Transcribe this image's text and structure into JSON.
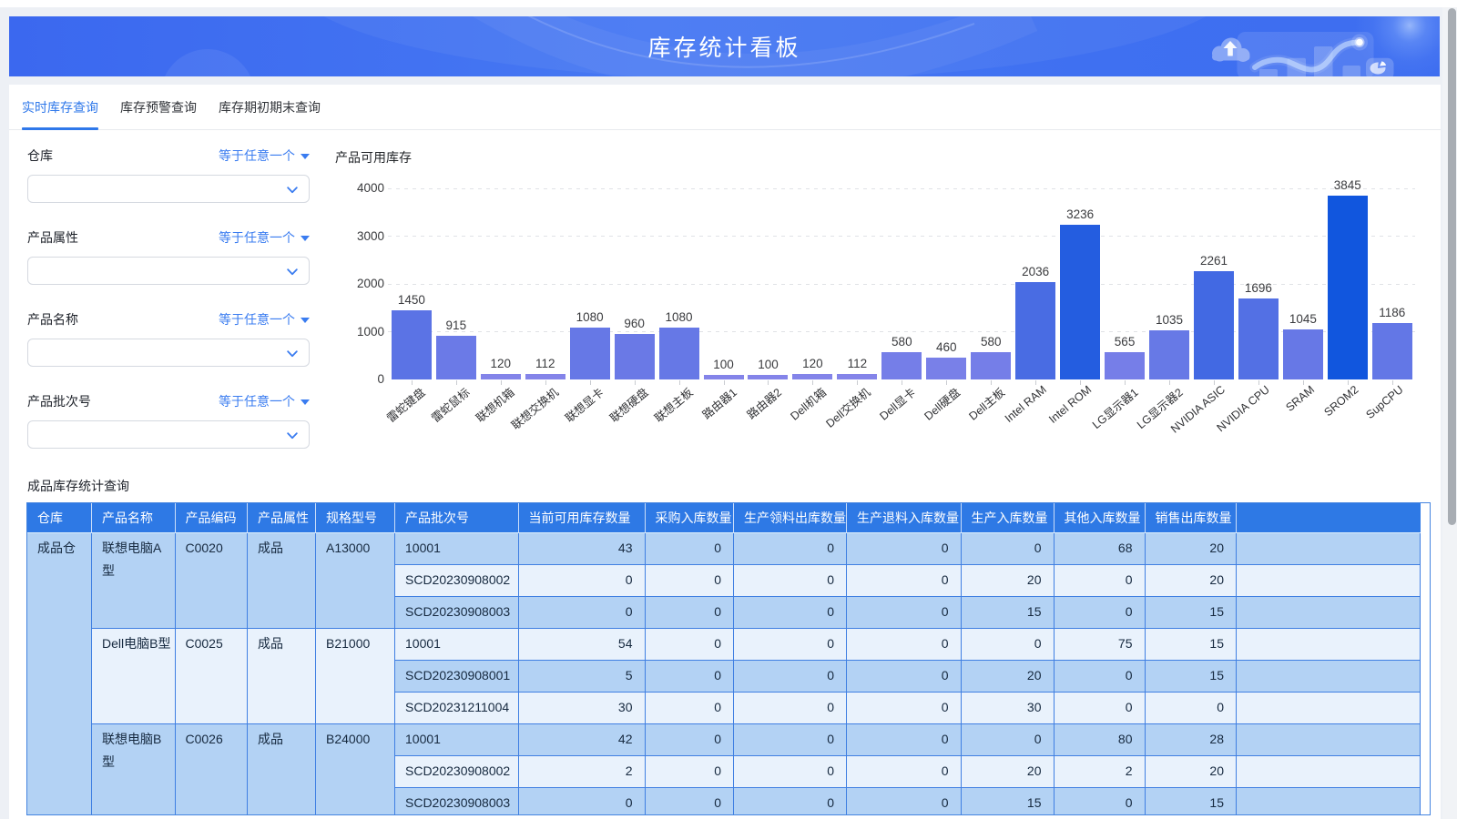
{
  "banner": {
    "title": "库存统计看板"
  },
  "tabs": [
    {
      "label": "实时库存查询",
      "active": true
    },
    {
      "label": "库存预警查询",
      "active": false
    },
    {
      "label": "库存期初期末查询",
      "active": false
    }
  ],
  "filters": {
    "operator_label": "等于任意一个",
    "groups": [
      {
        "label": "仓库",
        "value": ""
      },
      {
        "label": "产品属性",
        "value": ""
      },
      {
        "label": "产品名称",
        "value": ""
      },
      {
        "label": "产品批次号",
        "value": ""
      }
    ]
  },
  "chart_data": {
    "type": "bar",
    "title": "产品可用库存",
    "categories": [
      "雷蛇键盘",
      "雷蛇鼠标",
      "联想机箱",
      "联想交换机",
      "联想显卡",
      "联想硬盘",
      "联想主板",
      "路由器1",
      "路由器2",
      "Dell机箱",
      "Dell交换机",
      "Dell显卡",
      "Dell硬盘",
      "Dell主板",
      "Intel RAM",
      "Intel ROM",
      "LG显示器1",
      "LG显示器2",
      "NVIDIA ASIC",
      "NVIDIA CPU",
      "SRAM",
      "SROM2",
      "SupCPU"
    ],
    "values": [
      1450,
      915,
      120,
      112,
      1080,
      960,
      1080,
      100,
      100,
      120,
      112,
      580,
      460,
      580,
      2036,
      3236,
      565,
      1035,
      2261,
      1696,
      1045,
      3845,
      1186
    ],
    "xlabel": "",
    "ylabel": "",
    "ylim": [
      0,
      4000
    ],
    "yticks": [
      0,
      1000,
      2000,
      3000,
      4000
    ],
    "grid": "dashed-horizontal",
    "legend": "none",
    "bar_color_low": "#8484e9",
    "bar_color_high": "#1156de"
  },
  "table": {
    "caption": "成品库存统计查询",
    "columns": [
      {
        "label": "仓库"
      },
      {
        "label": "产品名称"
      },
      {
        "label": "产品编码"
      },
      {
        "label": "产品属性"
      },
      {
        "label": "规格型号"
      },
      {
        "label": "产品批次号"
      },
      {
        "label": "当前可用库存数量"
      },
      {
        "label": "采购入库数量"
      },
      {
        "label": "生产领料出库数量"
      },
      {
        "label": "生产退料入库数量"
      },
      {
        "label": "生产入库数量"
      },
      {
        "label": "其他入库数量"
      },
      {
        "label": "销售出库数量"
      },
      {
        "label": ""
      }
    ],
    "warehouse": "成品仓",
    "groups": [
      {
        "product": "联想电脑A型",
        "code": "C0020",
        "attr": "成品",
        "spec": "A13000",
        "batches": [
          {
            "batch": "10001",
            "values": [
              43,
              0,
              0,
              0,
              0,
              68,
              20
            ]
          },
          {
            "batch": "SCD20230908002",
            "values": [
              0,
              0,
              0,
              0,
              20,
              0,
              20
            ]
          },
          {
            "batch": "SCD20230908003",
            "values": [
              0,
              0,
              0,
              0,
              15,
              0,
              15
            ]
          }
        ]
      },
      {
        "product": "Dell电脑B型",
        "code": "C0025",
        "attr": "成品",
        "spec": "B21000",
        "batches": [
          {
            "batch": "10001",
            "values": [
              54,
              0,
              0,
              0,
              0,
              75,
              15
            ]
          },
          {
            "batch": "SCD20230908001",
            "values": [
              5,
              0,
              0,
              0,
              20,
              0,
              15
            ]
          },
          {
            "batch": "SCD20231211004",
            "values": [
              30,
              0,
              0,
              0,
              30,
              0,
              0
            ]
          }
        ]
      },
      {
        "product": "联想电脑B型",
        "code": "C0026",
        "attr": "成品",
        "spec": "B24000",
        "batches": [
          {
            "batch": "10001",
            "values": [
              42,
              0,
              0,
              0,
              0,
              80,
              28
            ]
          },
          {
            "batch": "SCD20230908002",
            "values": [
              2,
              0,
              0,
              0,
              20,
              2,
              20
            ]
          },
          {
            "batch": "SCD20230908003",
            "values": [
              0,
              0,
              0,
              0,
              15,
              0,
              15
            ]
          }
        ]
      }
    ]
  }
}
